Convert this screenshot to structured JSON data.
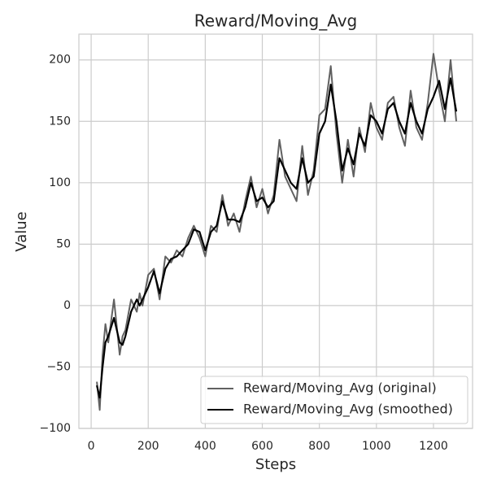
{
  "chart_data": {
    "type": "line",
    "title": "Reward/Moving_Avg",
    "x_label": "Steps",
    "y_label": "Value",
    "x": [
      20,
      30,
      40,
      50,
      60,
      80,
      100,
      110,
      120,
      140,
      160,
      170,
      180,
      200,
      220,
      240,
      260,
      280,
      300,
      320,
      340,
      360,
      380,
      400,
      420,
      440,
      460,
      480,
      500,
      520,
      540,
      560,
      580,
      600,
      620,
      640,
      660,
      680,
      700,
      720,
      740,
      760,
      780,
      800,
      820,
      840,
      860,
      880,
      900,
      920,
      940,
      960,
      980,
      1000,
      1020,
      1040,
      1060,
      1080,
      1100,
      1120,
      1140,
      1160,
      1180,
      1200,
      1220,
      1240,
      1260,
      1280
    ],
    "series": [
      {
        "name": "Reward/Moving_Avg (original)",
        "color": "#616161",
        "values": [
          -62,
          -85,
          -40,
          -15,
          -30,
          5,
          -40,
          -25,
          -20,
          5,
          -5,
          10,
          0,
          25,
          30,
          5,
          40,
          35,
          45,
          40,
          55,
          65,
          55,
          40,
          65,
          60,
          90,
          65,
          75,
          60,
          85,
          105,
          80,
          95,
          75,
          90,
          135,
          105,
          95,
          85,
          130,
          90,
          110,
          155,
          160,
          195,
          140,
          100,
          135,
          105,
          145,
          125,
          165,
          145,
          135,
          165,
          170,
          145,
          130,
          175,
          145,
          135,
          165,
          205,
          175,
          150,
          200,
          150
        ]
      },
      {
        "name": "Reward/Moving_Avg (smoothed)",
        "color": "#000000",
        "values": [
          -65,
          -75,
          -50,
          -30,
          -25,
          -10,
          -30,
          -32,
          -25,
          -5,
          5,
          0,
          5,
          15,
          28,
          10,
          30,
          38,
          40,
          45,
          50,
          62,
          60,
          45,
          60,
          65,
          85,
          70,
          70,
          68,
          80,
          100,
          85,
          88,
          80,
          85,
          120,
          110,
          100,
          95,
          120,
          100,
          105,
          140,
          150,
          180,
          150,
          110,
          128,
          115,
          140,
          130,
          155,
          150,
          140,
          160,
          165,
          150,
          140,
          165,
          150,
          140,
          160,
          170,
          183,
          160,
          185,
          158
        ]
      }
    ],
    "xlim": [
      -43,
      1337
    ],
    "ylim": [
      -100,
      221
    ],
    "xticks": [
      0,
      200,
      400,
      600,
      800,
      1000,
      1200
    ],
    "yticks": [
      {
        "value": -100,
        "label": "−100"
      },
      {
        "value": -50,
        "label": "−50"
      },
      0,
      50,
      100,
      150,
      200
    ],
    "grid": true,
    "legend": "lower right"
  }
}
